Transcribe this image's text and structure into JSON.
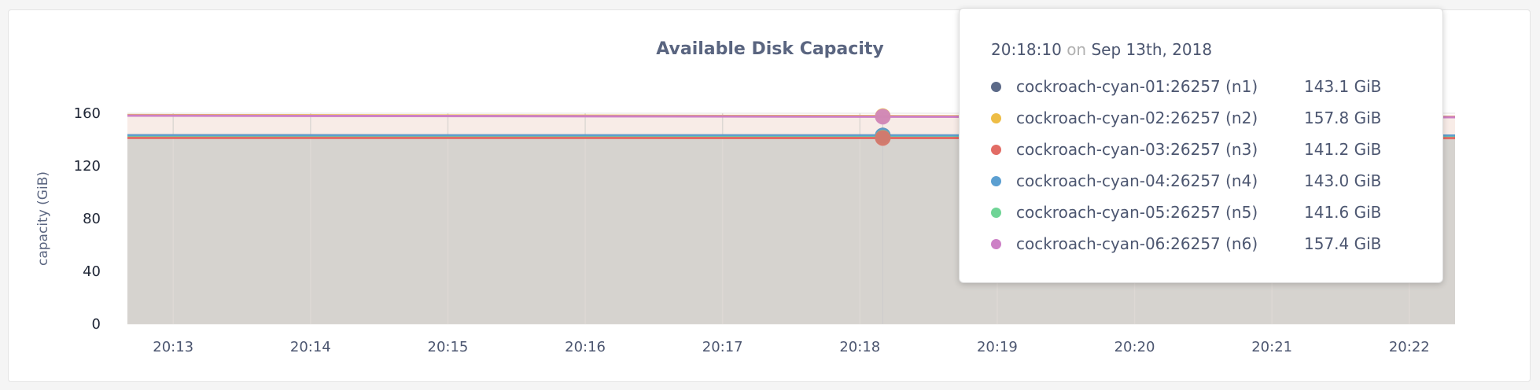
{
  "chart_data": {
    "type": "area",
    "title": "Available Disk Capacity",
    "ylabel": "capacity (GiB)",
    "xlabel": "",
    "ylim": [
      0,
      160
    ],
    "yticks": [
      "0",
      "40",
      "80",
      "120",
      "160"
    ],
    "xticks": [
      "20:13",
      "20:14",
      "20:15",
      "20:16",
      "20:17",
      "20:18",
      "20:19",
      "20:20",
      "20:21",
      "20:22"
    ],
    "xrange": [
      "20:12:40",
      "20:22:20"
    ],
    "grid": true,
    "x": [
      "20:12:40",
      "20:18:10",
      "20:22:20"
    ],
    "series": [
      {
        "name": "cockroach-cyan-01:26257 (n1)",
        "color": "#5c6a88",
        "values": [
          143.2,
          143.1,
          143.0
        ],
        "label": "143.1 GiB"
      },
      {
        "name": "cockroach-cyan-02:26257 (n2)",
        "color": "#eebd45",
        "values": [
          158.6,
          157.8,
          157.3
        ],
        "label": "157.8 GiB"
      },
      {
        "name": "cockroach-cyan-03:26257 (n3)",
        "color": "#e26c65",
        "values": [
          141.3,
          141.2,
          141.1
        ],
        "label": "141.2 GiB"
      },
      {
        "name": "cockroach-cyan-04:26257 (n4)",
        "color": "#5b9fd1",
        "values": [
          143.1,
          143.0,
          142.9
        ],
        "label": "143.0 GiB"
      },
      {
        "name": "cockroach-cyan-05:26257 (n5)",
        "color": "#6fd496",
        "values": [
          141.7,
          141.6,
          141.5
        ],
        "label": "141.6 GiB"
      },
      {
        "name": "cockroach-cyan-06:26257 (n6)",
        "color": "#cd80c6",
        "values": [
          158.2,
          157.4,
          157.0
        ],
        "label": "157.4 GiB"
      }
    ]
  },
  "tooltip": {
    "time": "20:18:10",
    "on": "on",
    "date": "Sep 13th, 2018",
    "hover_x": "20:18:10"
  }
}
